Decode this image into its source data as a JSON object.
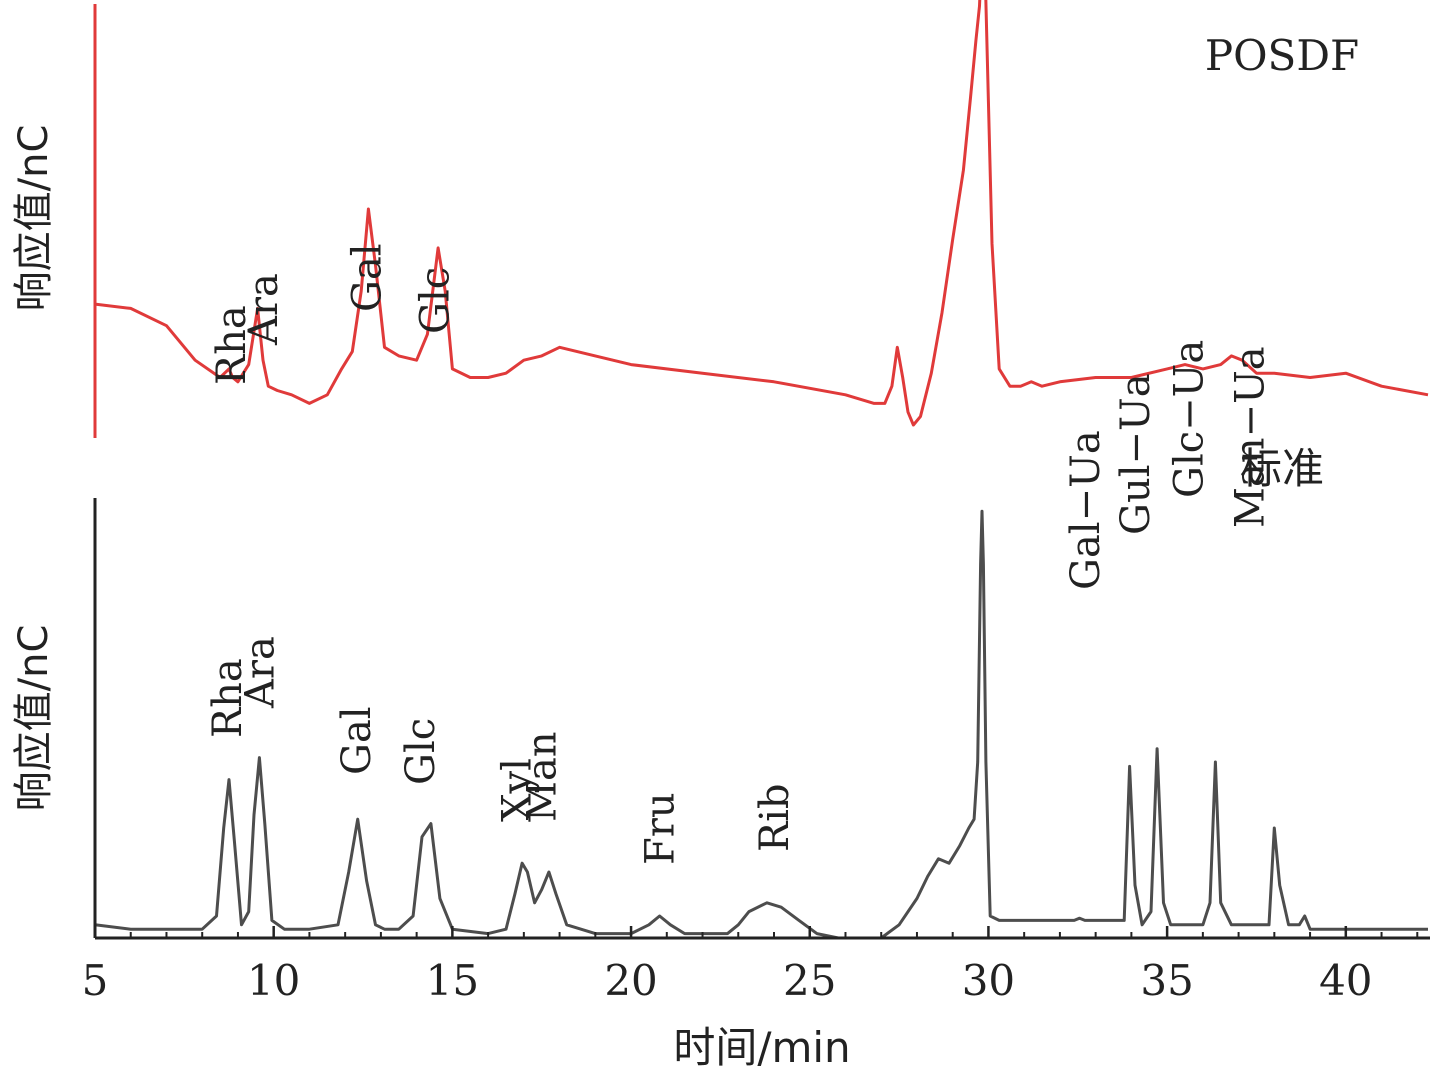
{
  "chart_data": {
    "type": "line",
    "colors": {
      "sample": "#e03a3a",
      "standard": "#4d4d4d",
      "axis": "#222222"
    },
    "x_axis": {
      "label": "时间/min",
      "range": [
        5,
        42.3
      ],
      "ticks": [
        5,
        10,
        15,
        20,
        25,
        30,
        35,
        40
      ],
      "tick_labels": [
        "5",
        "10",
        "15",
        "20",
        "25",
        "30",
        "35",
        "40"
      ]
    },
    "grid": false,
    "panels": [
      {
        "id": "sample",
        "name": "POSDF",
        "ylabel": "响应值/nC",
        "color": "#e03a3a",
        "x": [
          5.0,
          6.0,
          7.0,
          7.8,
          8.5,
          8.75,
          8.85,
          9.0,
          9.3,
          9.55,
          9.7,
          9.85,
          10.1,
          10.5,
          11.0,
          11.5,
          11.9,
          12.2,
          12.45,
          12.65,
          12.85,
          13.1,
          13.5,
          14.0,
          14.3,
          14.6,
          14.8,
          15.0,
          15.5,
          16.0,
          16.5,
          17.0,
          17.5,
          18.0,
          19.0,
          20.0,
          22.0,
          24.0,
          26.0,
          26.8,
          27.1,
          27.3,
          27.45,
          27.6,
          27.75,
          27.9,
          28.1,
          28.4,
          28.7,
          29.0,
          29.3,
          29.5,
          29.65,
          29.75,
          29.8,
          29.85,
          29.9,
          30.0,
          30.1,
          30.3,
          30.6,
          30.9,
          31.2,
          31.5,
          32.0,
          33.0,
          34.0,
          35.0,
          35.5,
          36.0,
          36.5,
          36.8,
          37.1,
          37.5,
          38.0,
          39.0,
          40.0,
          41.0,
          42.3
        ],
        "y": [
          0.31,
          0.3,
          0.26,
          0.18,
          0.14,
          0.16,
          0.14,
          0.13,
          0.17,
          0.3,
          0.18,
          0.12,
          0.11,
          0.1,
          0.08,
          0.1,
          0.16,
          0.2,
          0.34,
          0.53,
          0.4,
          0.21,
          0.19,
          0.18,
          0.24,
          0.44,
          0.34,
          0.16,
          0.14,
          0.14,
          0.15,
          0.18,
          0.19,
          0.21,
          0.19,
          0.17,
          0.15,
          0.13,
          0.1,
          0.08,
          0.08,
          0.12,
          0.21,
          0.14,
          0.06,
          0.03,
          0.05,
          0.15,
          0.29,
          0.46,
          0.62,
          0.79,
          0.92,
          1.0,
          1.1,
          1.18,
          1.1,
          0.78,
          0.45,
          0.16,
          0.12,
          0.12,
          0.13,
          0.12,
          0.13,
          0.14,
          0.14,
          0.16,
          0.17,
          0.16,
          0.17,
          0.19,
          0.18,
          0.15,
          0.15,
          0.14,
          0.15,
          0.12,
          0.1
        ],
        "peak_labels": [
          {
            "text": "Rha",
            "x": 8.8
          },
          {
            "text": "Ara",
            "x": 9.7
          },
          {
            "text": "Gal",
            "x": 12.6
          },
          {
            "text": "Glc",
            "x": 14.5
          }
        ]
      },
      {
        "id": "standard",
        "name": "标准",
        "ylabel": "响应值/nC",
        "color": "#4d4d4d",
        "x": [
          5.0,
          6.0,
          7.0,
          8.0,
          8.4,
          8.6,
          8.75,
          8.9,
          9.1,
          9.3,
          9.45,
          9.6,
          9.75,
          9.95,
          10.3,
          11.0,
          11.8,
          12.1,
          12.35,
          12.6,
          12.85,
          13.1,
          13.5,
          13.9,
          14.15,
          14.4,
          14.65,
          15.0,
          16.0,
          16.5,
          16.75,
          16.95,
          17.1,
          17.3,
          17.5,
          17.7,
          17.9,
          18.2,
          18.6,
          19.0,
          20.0,
          20.5,
          20.8,
          21.1,
          21.5,
          22.0,
          22.7,
          23.0,
          23.3,
          23.8,
          24.2,
          24.7,
          25.2,
          25.8,
          26.5,
          27.0,
          27.5,
          28.0,
          28.3,
          28.6,
          28.9,
          29.2,
          29.45,
          29.6,
          29.7,
          29.78,
          29.82,
          29.86,
          29.93,
          30.05,
          30.3,
          31.0,
          32.0,
          32.4,
          32.55,
          32.7,
          33.5,
          33.8,
          33.95,
          34.1,
          34.3,
          34.55,
          34.72,
          34.9,
          35.1,
          35.5,
          36.0,
          36.2,
          36.35,
          36.5,
          36.8,
          37.5,
          37.85,
          38.0,
          38.15,
          38.4,
          38.7,
          38.85,
          39.0,
          39.5,
          40.0,
          41.0,
          42.3
        ],
        "y": [
          0.03,
          0.02,
          0.02,
          0.02,
          0.05,
          0.25,
          0.36,
          0.22,
          0.03,
          0.06,
          0.28,
          0.41,
          0.26,
          0.04,
          0.02,
          0.02,
          0.03,
          0.15,
          0.27,
          0.13,
          0.03,
          0.02,
          0.02,
          0.05,
          0.23,
          0.26,
          0.09,
          0.02,
          0.01,
          0.02,
          0.1,
          0.17,
          0.15,
          0.08,
          0.11,
          0.15,
          0.1,
          0.03,
          0.02,
          0.01,
          0.01,
          0.03,
          0.05,
          0.03,
          0.01,
          0.01,
          0.01,
          0.03,
          0.06,
          0.08,
          0.07,
          0.04,
          0.01,
          0.0,
          0.0,
          0.0,
          0.03,
          0.09,
          0.14,
          0.18,
          0.17,
          0.21,
          0.25,
          0.27,
          0.4,
          0.85,
          0.97,
          0.85,
          0.4,
          0.05,
          0.04,
          0.04,
          0.04,
          0.04,
          0.045,
          0.04,
          0.04,
          0.04,
          0.39,
          0.12,
          0.03,
          0.06,
          0.43,
          0.08,
          0.03,
          0.03,
          0.03,
          0.08,
          0.4,
          0.08,
          0.03,
          0.03,
          0.03,
          0.25,
          0.12,
          0.03,
          0.03,
          0.05,
          0.02,
          0.02,
          0.02,
          0.02,
          0.02
        ],
        "peak_labels": [
          {
            "text": "Rha",
            "x": 8.7
          },
          {
            "text": "Ara",
            "x": 9.6
          },
          {
            "text": "Gal",
            "x": 12.3
          },
          {
            "text": "Glc",
            "x": 14.1
          },
          {
            "text": "Xyl",
            "x": 16.8
          },
          {
            "text": "Man",
            "x": 17.5
          },
          {
            "text": "Fru",
            "x": 20.8
          },
          {
            "text": "Rib",
            "x": 24.0
          },
          {
            "text": "Gal−Ua",
            "x": 32.7
          },
          {
            "text": "Gul−Ua",
            "x": 34.1
          },
          {
            "text": "Glc−Ua",
            "x": 35.6
          },
          {
            "text": "Man−Ua",
            "x": 37.3
          }
        ]
      }
    ]
  }
}
